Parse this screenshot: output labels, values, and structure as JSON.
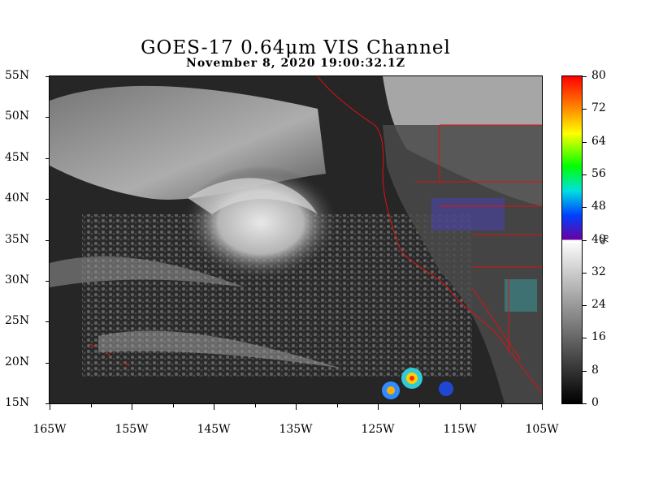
{
  "header": {
    "title": "GOES-17  0.64μm VIS Channel",
    "subtitle": "November  8,  2020 19:00:32.1Z"
  },
  "map": {
    "lat_labels": [
      "55N",
      "50N",
      "45N",
      "40N",
      "35N",
      "30N",
      "25N",
      "20N",
      "15N"
    ],
    "lat_values": [
      55,
      50,
      45,
      40,
      35,
      30,
      25,
      20,
      15
    ],
    "lon_labels": [
      "165W",
      "155W",
      "145W",
      "135W",
      "125W",
      "115W",
      "105W"
    ],
    "lon_values": [
      -165,
      -155,
      -145,
      -135,
      -125,
      -115,
      -105
    ],
    "lat_range": [
      15,
      55
    ],
    "lon_range": [
      -165,
      -105
    ],
    "borders_color": "#e01010"
  },
  "colorbar": {
    "labels": [
      "80",
      "72",
      "64",
      "56",
      "48",
      "40",
      "32",
      "24",
      "16",
      "8",
      "0"
    ],
    "values": [
      80,
      72,
      64,
      56,
      48,
      40,
      32,
      24,
      16,
      8,
      0
    ],
    "unit": "%",
    "range": [
      0,
      80
    ],
    "grayscale_max": 40
  }
}
